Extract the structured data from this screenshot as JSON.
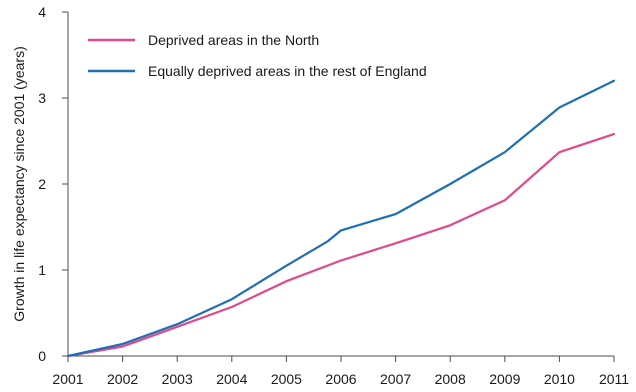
{
  "chart_data": {
    "type": "line",
    "title": "",
    "xlabel": "",
    "ylabel": "Growth in life expectancy since 2001 (years)",
    "x": [
      2001,
      2002,
      2003,
      2004,
      2005,
      2006,
      2007,
      2008,
      2009,
      2010,
      2011
    ],
    "x_tick_labels": [
      "2001",
      "2002",
      "2003",
      "2004",
      "2005",
      "2006",
      "2007",
      "2008",
      "2009",
      "2010",
      "2011"
    ],
    "y_tick_labels": [
      "0",
      "1",
      "2",
      "3",
      "4"
    ],
    "y_ticks": [
      0,
      1,
      2,
      3,
      4
    ],
    "ylim": [
      0,
      4
    ],
    "xlim": [
      2001,
      2011
    ],
    "grid": false,
    "legend_position": "top-left",
    "series": [
      {
        "name": "Deprived areas in the North",
        "color": "#e0498a",
        "points": [
          [
            2001,
            0
          ],
          [
            2002,
            0.11
          ],
          [
            2003,
            0.34
          ],
          [
            2004,
            0.57
          ],
          [
            2005,
            0.87
          ],
          [
            2006,
            1.11
          ],
          [
            2007,
            1.31
          ],
          [
            2008,
            1.52
          ],
          [
            2009,
            1.81
          ],
          [
            2010,
            2.37
          ],
          [
            2011,
            2.58
          ]
        ]
      },
      {
        "name": "Equally deprived areas in the rest of England",
        "color": "#1f6fb5",
        "points": [
          [
            2001,
            0
          ],
          [
            2002,
            0.14
          ],
          [
            2003,
            0.37
          ],
          [
            2004,
            0.66
          ],
          [
            2005,
            1.05
          ],
          [
            2005.75,
            1.33
          ],
          [
            2006,
            1.46
          ],
          [
            2007,
            1.65
          ],
          [
            2008,
            2.0
          ],
          [
            2009,
            2.37
          ],
          [
            2010,
            2.89
          ],
          [
            2011,
            3.2
          ]
        ]
      }
    ]
  }
}
